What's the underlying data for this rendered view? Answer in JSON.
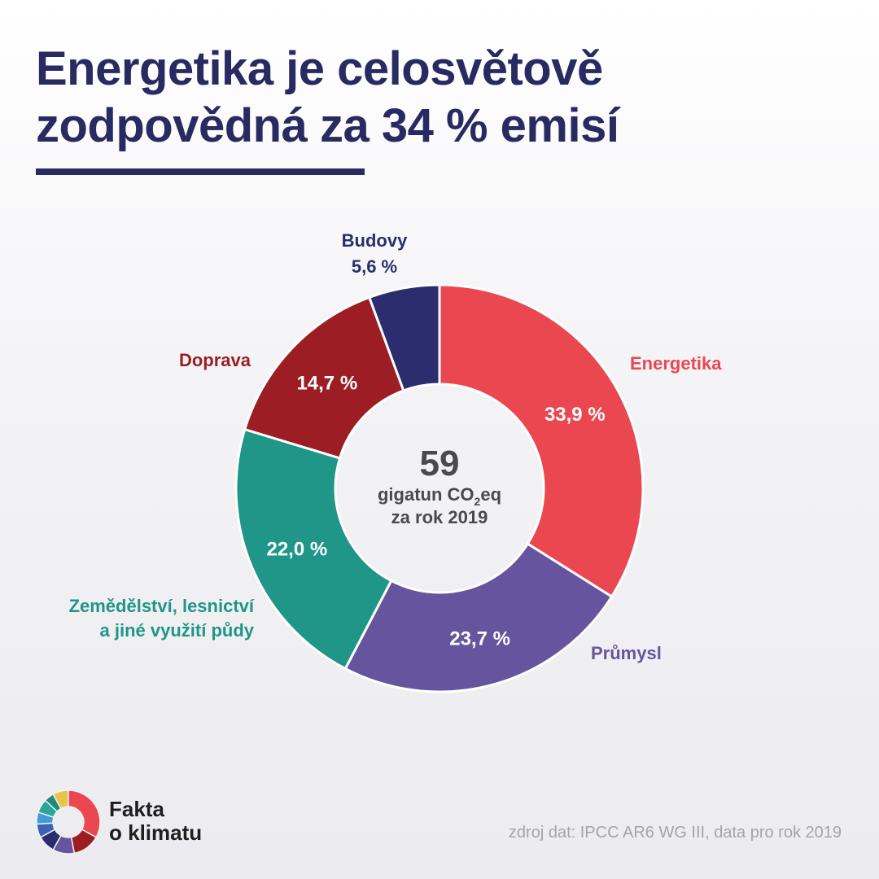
{
  "title": {
    "line1": "Energetika je celosvětově",
    "line2": "zodpovědná za 34 % emisí"
  },
  "chart_data": {
    "type": "pie",
    "categories": [
      "Energetika",
      "Průmysl",
      "Zemědělství, lesnictví a jiné využití půdy",
      "Doprava",
      "Budovy"
    ],
    "values": [
      33.9,
      23.7,
      22.0,
      14.7,
      5.6
    ],
    "value_labels": [
      "33,9 %",
      "23,7 %",
      "22,0 %",
      "14,7 %",
      "5,6 %"
    ],
    "category_lines": [
      [
        "Energetika"
      ],
      [
        "Průmysl"
      ],
      [
        "Zemědělství, lesnictví",
        "a jiné využití půdy"
      ],
      [
        "Doprava"
      ],
      [
        "Budovy"
      ]
    ],
    "colors": [
      "#eb4750",
      "#66559e",
      "#1f9688",
      "#9c1e24",
      "#2b2d6e"
    ],
    "center": {
      "total": "59",
      "line1_prefix": "gigatun CO",
      "line1_sub": "2",
      "line1_suffix": "eq",
      "line2": "za rok 2019"
    }
  },
  "logo": {
    "line1": "Fakta",
    "line2": "o klimatu",
    "colors": [
      "#eb4750",
      "#9c1e24",
      "#66559e",
      "#2b2d6e",
      "#3a63b4",
      "#3e9bd8",
      "#2aa59a",
      "#1f8a7c",
      "#e8c44a"
    ]
  },
  "source": "zdroj dat: IPCC AR6 WG III, data pro rok 2019"
}
